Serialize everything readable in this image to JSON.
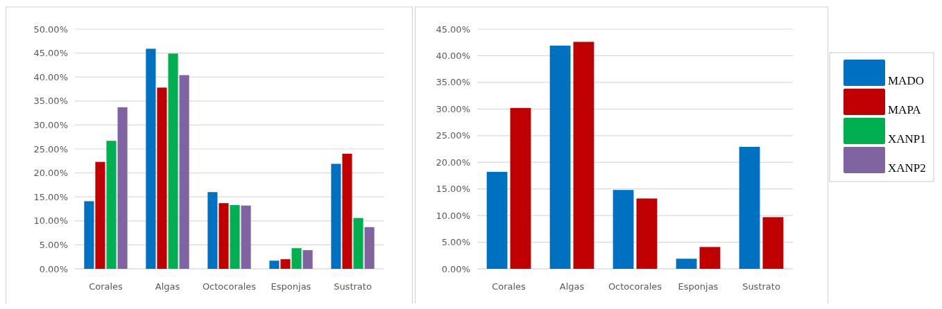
{
  "chart_data": [
    {
      "type": "bar",
      "categories": [
        "Corales",
        "Algas",
        "Octocorales",
        "Esponjas",
        "Sustrato"
      ],
      "ylim": [
        0,
        50
      ],
      "yticks": [
        {
          "value": 0,
          "label": "0.00%"
        },
        {
          "value": 5,
          "label": "5.00%"
        },
        {
          "value": 10,
          "label": "10.00%"
        },
        {
          "value": 15,
          "label": "15.00%"
        },
        {
          "value": 20,
          "label": "20.00%"
        },
        {
          "value": 25,
          "label": "25.00%"
        },
        {
          "value": 30,
          "label": "30.00%"
        },
        {
          "value": 35,
          "label": "35.00%"
        },
        {
          "value": 40,
          "label": "40.00%"
        },
        {
          "value": 45,
          "label": "45.00%"
        },
        {
          "value": 50,
          "label": "50.00%"
        }
      ],
      "grid": "y",
      "legend": "right",
      "series": [
        {
          "name": "MADO",
          "color": "#0070c0",
          "values": [
            14.1,
            45.9,
            16.0,
            1.7,
            21.9
          ]
        },
        {
          "name": "MAPA",
          "color": "#c00000",
          "values": [
            22.3,
            37.8,
            13.7,
            2.0,
            24.0
          ]
        },
        {
          "name": "XANP1",
          "color": "#00b050",
          "values": [
            26.7,
            44.9,
            13.3,
            4.3,
            10.6
          ]
        },
        {
          "name": "XANP2",
          "color": "#8064a2",
          "values": [
            33.7,
            40.4,
            13.2,
            3.9,
            8.7
          ]
        }
      ]
    },
    {
      "type": "bar",
      "categories": [
        "Corales",
        "Algas",
        "Octocorales",
        "Esponjas",
        "Sustrato"
      ],
      "ylim": [
        0,
        45
      ],
      "yticks": [
        {
          "value": 0,
          "label": "0.00%"
        },
        {
          "value": 5,
          "label": "5.00%"
        },
        {
          "value": 10,
          "label": "10.00%"
        },
        {
          "value": 15,
          "label": "15.00%"
        },
        {
          "value": 20,
          "label": "20.00%"
        },
        {
          "value": 25,
          "label": "25.00%"
        },
        {
          "value": 30,
          "label": "30.00%"
        },
        {
          "value": 35,
          "label": "35.00%"
        },
        {
          "value": 40,
          "label": "40.00%"
        },
        {
          "value": 45,
          "label": "45.00%"
        }
      ],
      "grid": "y",
      "series": [
        {
          "color": "#0070c0",
          "values": [
            18.2,
            41.9,
            14.8,
            1.9,
            22.9
          ]
        },
        {
          "color": "#c00000",
          "values": [
            30.2,
            42.6,
            13.2,
            4.1,
            9.7
          ]
        }
      ]
    }
  ]
}
